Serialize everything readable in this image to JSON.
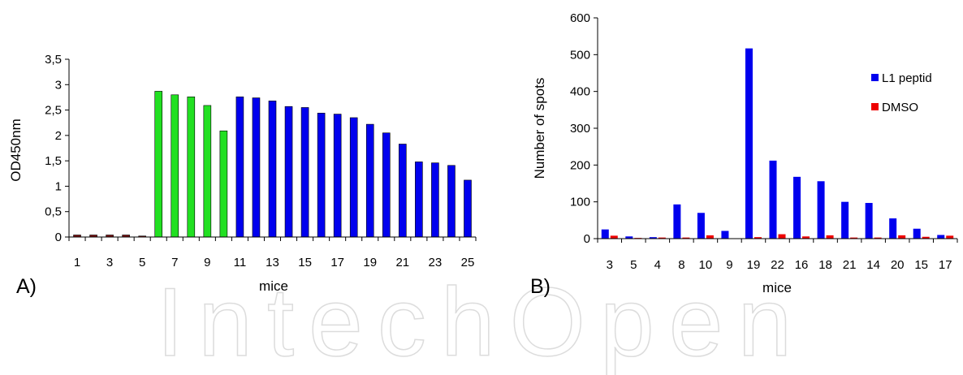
{
  "panels": {
    "a_label": "A)",
    "b_label": "B)"
  },
  "watermark": "IntechOpen",
  "chart_data": [
    {
      "id": "A",
      "type": "bar",
      "xlabel": "mice",
      "ylabel": "OD450nm",
      "ylim": [
        0,
        3.5
      ],
      "yticks": [
        "0",
        "0,5",
        "1",
        "1,5",
        "2",
        "2,5",
        "3",
        "3,5"
      ],
      "categories": [
        "1",
        "2",
        "3",
        "4",
        "5",
        "6",
        "7",
        "8",
        "9",
        "10",
        "11",
        "12",
        "13",
        "14",
        "15",
        "16",
        "17",
        "18",
        "19",
        "20",
        "21",
        "22",
        "23",
        "24",
        "25"
      ],
      "xtick_labels": [
        "1",
        "",
        "3",
        "",
        "5",
        "",
        "7",
        "",
        "9",
        "",
        "11",
        "",
        "13",
        "",
        "15",
        "",
        "17",
        "",
        "19",
        "",
        "21",
        "",
        "23",
        "",
        "25"
      ],
      "values": [
        0.04,
        0.04,
        0.04,
        0.04,
        0.02,
        2.87,
        2.8,
        2.76,
        2.59,
        2.09,
        2.76,
        2.74,
        2.68,
        2.57,
        2.55,
        2.44,
        2.42,
        2.35,
        2.22,
        2.05,
        1.83,
        1.48,
        1.46,
        1.41,
        1.12
      ],
      "colors": [
        "#7a1010",
        "#7a1010",
        "#7a1010",
        "#7a1010",
        "#7a1010",
        "#22e022",
        "#22e022",
        "#22e022",
        "#22e022",
        "#22e022",
        "#0000ee",
        "#0000ee",
        "#0000ee",
        "#0000ee",
        "#0000ee",
        "#0000ee",
        "#0000ee",
        "#0000ee",
        "#0000ee",
        "#0000ee",
        "#0000ee",
        "#0000ee",
        "#0000ee",
        "#0000ee",
        "#0000ee"
      ],
      "grid": false
    },
    {
      "id": "B",
      "type": "bar",
      "xlabel": "mice",
      "ylabel": "Number of spots",
      "ylim": [
        0,
        600
      ],
      "yticks": [
        "0",
        "100",
        "200",
        "300",
        "400",
        "500",
        "600"
      ],
      "categories": [
        "3",
        "5",
        "4",
        "8",
        "10",
        "9",
        "19",
        "22",
        "16",
        "18",
        "21",
        "14",
        "20",
        "15",
        "17"
      ],
      "series": [
        {
          "name": "L1 peptid",
          "color": "#0000ee",
          "values": [
            25,
            6,
            4,
            93,
            70,
            21,
            517,
            212,
            168,
            156,
            100,
            97,
            55,
            27,
            10
          ]
        },
        {
          "name": "DMSO",
          "color": "#ee0000",
          "values": [
            8,
            2,
            3,
            3,
            9,
            0,
            4,
            12,
            6,
            9,
            3,
            3,
            9,
            5,
            8
          ]
        }
      ],
      "legend": "right",
      "grid": false
    }
  ]
}
